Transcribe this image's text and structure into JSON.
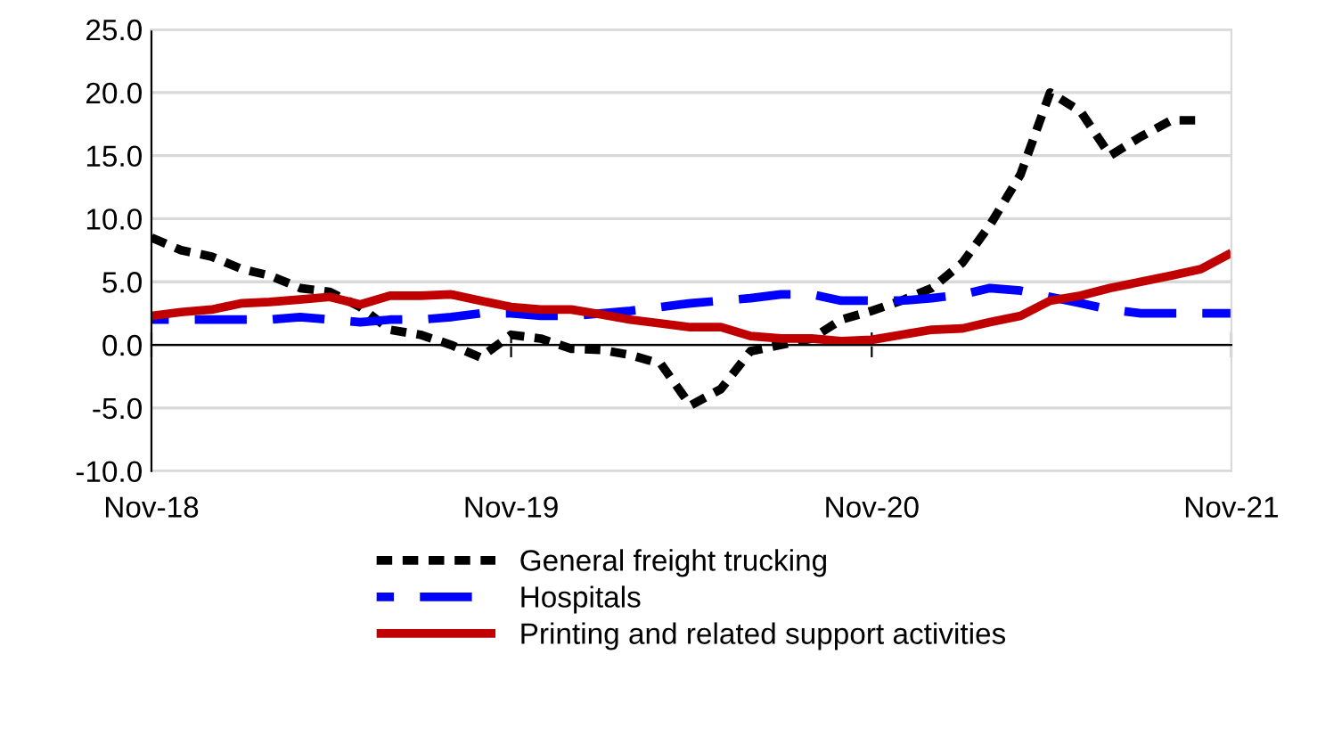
{
  "chart_data": {
    "type": "line",
    "x": [
      "2018-11",
      "2018-12",
      "2019-01",
      "2019-02",
      "2019-03",
      "2019-04",
      "2019-05",
      "2019-06",
      "2019-07",
      "2019-08",
      "2019-09",
      "2019-10",
      "2019-11",
      "2019-12",
      "2020-01",
      "2020-02",
      "2020-03",
      "2020-04",
      "2020-05",
      "2020-06",
      "2020-07",
      "2020-08",
      "2020-09",
      "2020-10",
      "2020-11",
      "2020-12",
      "2021-01",
      "2021-02",
      "2021-03",
      "2021-04",
      "2021-05",
      "2021-06",
      "2021-07",
      "2021-08",
      "2021-09",
      "2021-10",
      "2021-11"
    ],
    "series": [
      {
        "name": "General freight trucking",
        "color": "#000000",
        "line_style": "dotted",
        "values": [
          8.5,
          7.5,
          7.0,
          6.0,
          5.5,
          4.5,
          4.2,
          3.0,
          1.2,
          0.8,
          0.0,
          -1.0,
          0.8,
          0.5,
          -0.3,
          -0.4,
          -0.8,
          -1.5,
          -4.8,
          -3.5,
          -0.5,
          0.0,
          0.5,
          2.0,
          2.7,
          3.5,
          4.5,
          6.5,
          9.5,
          13.5,
          20.0,
          18.5,
          15.0,
          16.5,
          17.8,
          17.8,
          null
        ]
      },
      {
        "name": "Hospitals",
        "color": "#0000ff",
        "line_style": "dashed",
        "values": [
          2.0,
          2.0,
          2.0,
          2.0,
          2.0,
          2.2,
          2.0,
          1.8,
          2.0,
          2.0,
          2.2,
          2.5,
          2.5,
          2.3,
          2.3,
          2.5,
          2.7,
          3.0,
          3.3,
          3.5,
          3.7,
          4.0,
          4.0,
          3.5,
          3.5,
          3.5,
          3.7,
          4.0,
          4.5,
          4.3,
          3.8,
          3.3,
          2.8,
          2.5,
          2.5,
          2.5,
          2.5
        ]
      },
      {
        "name": "Printing and related support activities",
        "color": "#c00000",
        "line_style": "solid",
        "values": [
          2.3,
          2.6,
          2.8,
          3.3,
          3.4,
          3.6,
          3.8,
          3.2,
          3.9,
          3.9,
          4.0,
          3.5,
          3.0,
          2.8,
          2.8,
          2.4,
          2.0,
          1.7,
          1.4,
          1.4,
          0.7,
          0.5,
          0.5,
          0.3,
          0.4,
          0.8,
          1.2,
          1.3,
          1.8,
          2.3,
          3.5,
          3.9,
          4.5,
          5.0,
          5.5,
          6.0,
          7.3
        ]
      }
    ],
    "xlim": [
      "2018-11",
      "2021-11"
    ],
    "xticks": [
      {
        "value": "2018-11",
        "label": "Nov-18"
      },
      {
        "value": "2019-11",
        "label": "Nov-19"
      },
      {
        "value": "2020-11",
        "label": "Nov-20"
      },
      {
        "value": "2021-11",
        "label": "Nov-21"
      }
    ],
    "ylim": [
      -10,
      25
    ],
    "yticks": [
      {
        "value": -10,
        "label": "-10.0"
      },
      {
        "value": -5,
        "label": "-5.0"
      },
      {
        "value": 0,
        "label": "0.0"
      },
      {
        "value": 5,
        "label": "5.0"
      },
      {
        "value": 10,
        "label": "10.0"
      },
      {
        "value": 15,
        "label": "15.0"
      },
      {
        "value": 20,
        "label": "20.0"
      },
      {
        "value": 25,
        "label": "25.0"
      }
    ],
    "grid": "y",
    "legend": "bottom"
  }
}
